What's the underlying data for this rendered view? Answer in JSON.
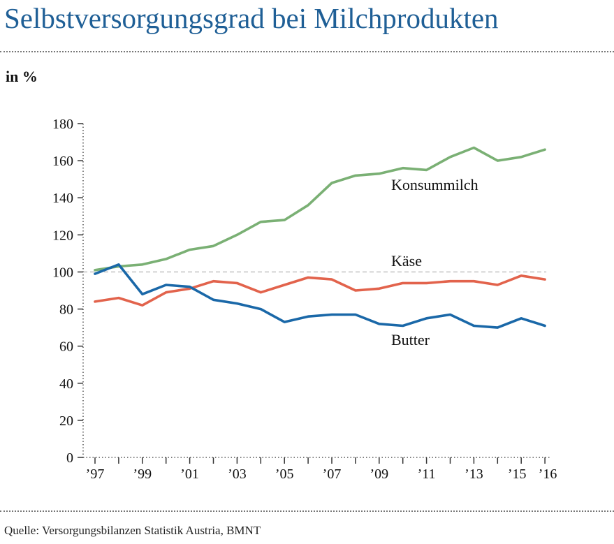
{
  "title": "Selbstversorgungsgrad bei Milchprodukten",
  "unit_label": "in %",
  "source": "Quelle: Versorgungsbilanzen Statistik Austria, BMNT",
  "colors": {
    "title": "#1f5f96",
    "Konsummilch": "#7ab074",
    "Käse": "#e2634c",
    "Butter": "#1a68a8",
    "reference": "#aaaaaa"
  },
  "chart_data": {
    "type": "line",
    "x": [
      1997,
      1998,
      1999,
      2000,
      2001,
      2002,
      2003,
      2004,
      2005,
      2006,
      2007,
      2008,
      2009,
      2010,
      2011,
      2012,
      2013,
      2014,
      2015,
      2016
    ],
    "x_tick_labels": [
      "’97",
      "’99",
      "’01",
      "’03",
      "’05",
      "’07",
      "’09",
      "’11",
      "’13",
      "’15",
      "’16"
    ],
    "x_tick_years": [
      1997,
      1999,
      2001,
      2003,
      2005,
      2007,
      2009,
      2011,
      2013,
      2015,
      2016
    ],
    "ylim": [
      0,
      180
    ],
    "y_ticks": [
      0,
      20,
      40,
      60,
      80,
      100,
      120,
      140,
      160,
      180
    ],
    "reference_line": 100,
    "series": [
      {
        "name": "Konsummilch",
        "color": "#7ab074",
        "values": [
          101,
          103,
          104,
          107,
          112,
          114,
          120,
          127,
          128,
          136,
          148,
          152,
          153,
          156,
          155,
          162,
          167,
          160,
          162,
          166
        ]
      },
      {
        "name": "Käse",
        "color": "#e2634c",
        "values": [
          84,
          86,
          82,
          89,
          91,
          95,
          94,
          89,
          93,
          97,
          96,
          90,
          91,
          94,
          94,
          95,
          95,
          93,
          98,
          96
        ]
      },
      {
        "name": "Butter",
        "color": "#1a68a8",
        "values": [
          99,
          104,
          88,
          93,
          92,
          85,
          83,
          80,
          73,
          76,
          77,
          77,
          72,
          71,
          75,
          77,
          71,
          70,
          75,
          71
        ]
      }
    ]
  }
}
